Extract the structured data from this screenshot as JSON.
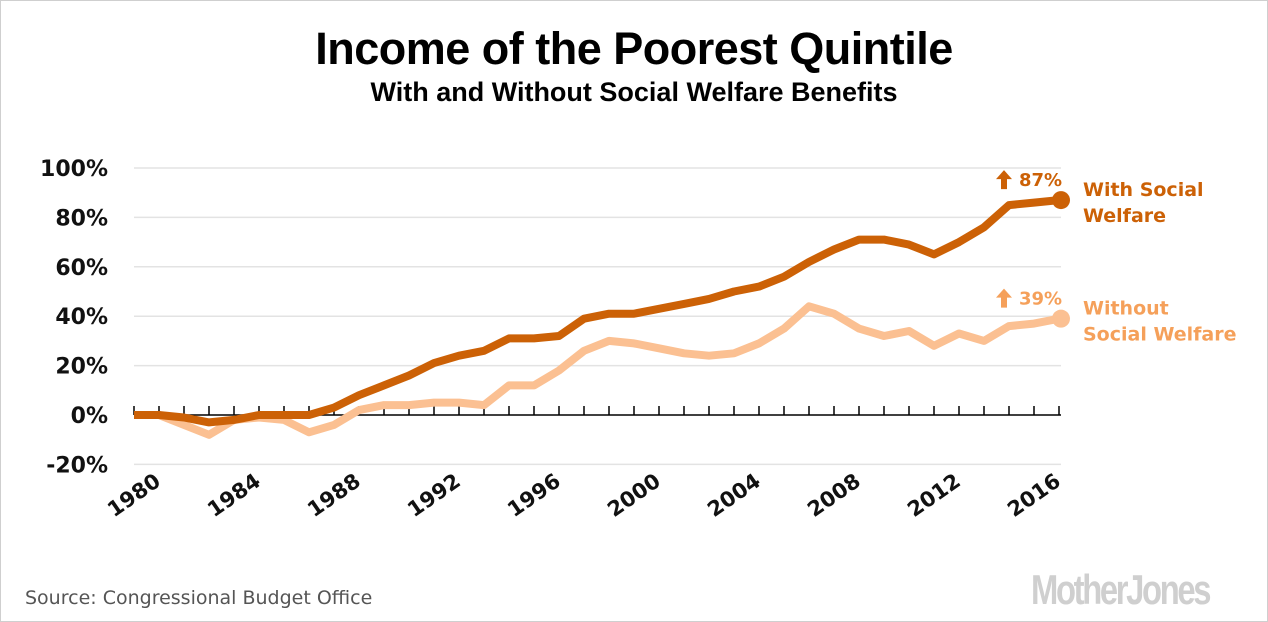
{
  "chart_data": {
    "type": "line",
    "title": "Income of the Poorest Quintile",
    "subtitle": "With and Without Social Welfare Benefits",
    "xlabel": "",
    "ylabel": "",
    "ylim": [
      -20,
      100
    ],
    "xlim": [
      1980,
      2017
    ],
    "grid": true,
    "y_ticks": [
      100,
      80,
      60,
      40,
      20,
      0,
      -20
    ],
    "y_tick_labels": [
      "100%",
      "80%",
      "60%",
      "40%",
      "20%",
      "0%",
      "-20%"
    ],
    "x_tick_labels": [
      "1980",
      "1984",
      "1988",
      "1992",
      "1996",
      "2000",
      "2004",
      "2008",
      "2012",
      "2016"
    ],
    "x_tick_values": [
      1980,
      1984,
      1988,
      1992,
      1996,
      2000,
      2004,
      2008,
      2012,
      2016
    ],
    "x": [
      1980,
      1981,
      1982,
      1983,
      1984,
      1985,
      1986,
      1987,
      1988,
      1989,
      1990,
      1991,
      1992,
      1993,
      1994,
      1995,
      1996,
      1997,
      1998,
      1999,
      2000,
      2001,
      2002,
      2003,
      2004,
      2005,
      2006,
      2007,
      2008,
      2009,
      2010,
      2011,
      2012,
      2013,
      2014,
      2015,
      2016,
      2017
    ],
    "series": [
      {
        "name": "With Social Welfare",
        "label_lines": [
          "With Social",
          "Welfare"
        ],
        "color": "#cc6106",
        "end_annotation": "87%",
        "values": [
          0,
          0,
          -1,
          -3,
          -2,
          0,
          0,
          0,
          3,
          8,
          12,
          16,
          21,
          24,
          26,
          31,
          31,
          32,
          39,
          41,
          41,
          43,
          45,
          47,
          50,
          52,
          56,
          62,
          67,
          71,
          71,
          69,
          65,
          70,
          76,
          85,
          86,
          87
        ]
      },
      {
        "name": "Without Social Welfare",
        "label_lines": [
          "Without",
          "Social Welfare"
        ],
        "color": "#fbc092",
        "label_color": "#f5a05a",
        "end_annotation": "39%",
        "values": [
          0,
          0,
          -4,
          -8,
          -2,
          -1,
          -2,
          -7,
          -4,
          2,
          4,
          4,
          5,
          5,
          4,
          12,
          12,
          18,
          26,
          30,
          29,
          27,
          25,
          24,
          25,
          29,
          35,
          44,
          41,
          35,
          32,
          34,
          28,
          33,
          30,
          36,
          37,
          39
        ]
      }
    ],
    "legend": "end-of-line labels, right"
  },
  "footer": {
    "source": "Source: Congressional Budget Office",
    "logo": "MotherJones"
  },
  "icons": {
    "up_arrow": "↑"
  }
}
